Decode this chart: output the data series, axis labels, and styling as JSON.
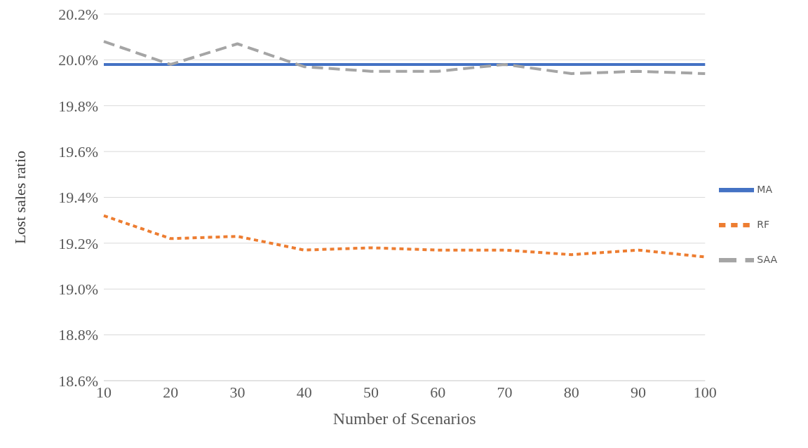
{
  "chart_data": {
    "type": "line",
    "xlabel": "Number of Scenarios",
    "ylabel": "Lost sales ratio",
    "categories": [
      "10",
      "20",
      "30",
      "40",
      "50",
      "60",
      "70",
      "80",
      "90",
      "100"
    ],
    "series": [
      {
        "name": "MA",
        "color": "#4472c4",
        "line_style": "solid",
        "values": [
          19.98,
          19.98,
          19.98,
          19.98,
          19.98,
          19.98,
          19.98,
          19.98,
          19.98,
          19.98
        ]
      },
      {
        "name": "RF",
        "color": "#ed7d31",
        "line_style": "dotted",
        "values": [
          19.32,
          19.22,
          19.23,
          19.17,
          19.18,
          19.17,
          19.17,
          19.15,
          19.17,
          19.14
        ]
      },
      {
        "name": "SAA",
        "color": "#a5a5a5",
        "line_style": "dashed",
        "values": [
          20.08,
          19.98,
          20.07,
          19.97,
          19.95,
          19.95,
          19.98,
          19.94,
          19.95,
          19.94
        ]
      }
    ],
    "ylim": [
      18.6,
      20.2
    ],
    "yticks": [
      {
        "value": 18.6,
        "label": "18.6%"
      },
      {
        "value": 18.8,
        "label": "18.8%"
      },
      {
        "value": 19.0,
        "label": "19.0%"
      },
      {
        "value": 19.2,
        "label": "19.2%"
      },
      {
        "value": 19.4,
        "label": "19.4%"
      },
      {
        "value": 19.6,
        "label": "19.6%"
      },
      {
        "value": 19.8,
        "label": "19.8%"
      },
      {
        "value": 20.0,
        "label": "20.0%"
      },
      {
        "value": 20.2,
        "label": "20.2%"
      }
    ],
    "grid": "y",
    "legend": "right",
    "marker": "none"
  }
}
